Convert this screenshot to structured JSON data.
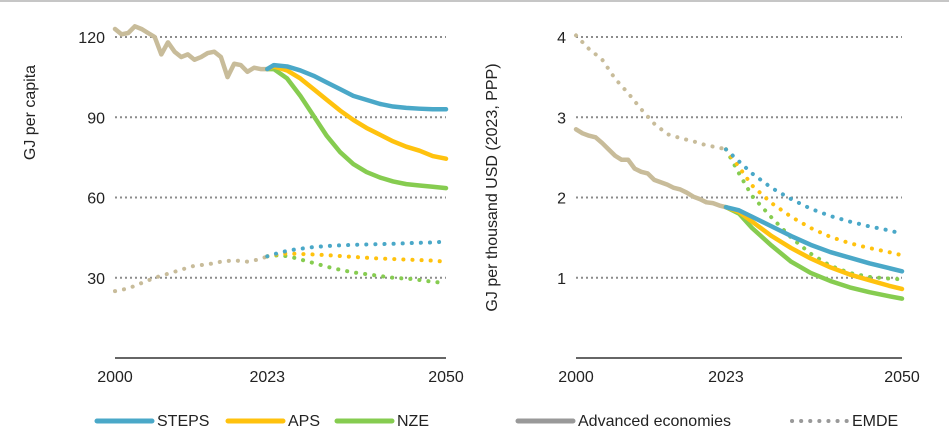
{
  "colors": {
    "STEPS": "#4aa8c8",
    "APS": "#ffc20e",
    "NZE": "#86cc50",
    "history": "#c8bc9a",
    "axis": "#333333",
    "grid": "#8c8c8c",
    "legend_gray": "#999999",
    "top_rule": "#b4b4b4"
  },
  "legend": {
    "steps": "STEPS",
    "aps": "APS",
    "nze": "NZE",
    "advanced": "Advanced economies",
    "emde": "EMDE"
  },
  "chart_data": [
    {
      "type": "line",
      "ylabel": "GJ per capita",
      "xlim": [
        2000,
        2050
      ],
      "ylim": [
        0,
        130
      ],
      "xticks": [
        2000,
        2023,
        2050
      ],
      "yticks": [
        30,
        60,
        90,
        120
      ],
      "grid": true,
      "series": [
        {
          "name": "Advanced economies",
          "scenario": "history",
          "style": "solid",
          "x": [
            2000,
            2001,
            2002,
            2003,
            2004,
            2005,
            2006,
            2007,
            2008,
            2009,
            2010,
            2011,
            2012,
            2013,
            2014,
            2015,
            2016,
            2017,
            2018,
            2019,
            2020,
            2021,
            2022,
            2023
          ],
          "y": [
            123,
            121,
            121.5,
            124,
            123,
            121.5,
            120,
            113.5,
            118,
            114.5,
            112.5,
            113.5,
            111.5,
            112.5,
            114,
            114.5,
            112.5,
            105,
            110,
            109.5,
            107,
            108.5,
            108,
            108
          ]
        },
        {
          "name": "Advanced economies",
          "scenario": "STEPS",
          "style": "solid",
          "x": [
            2023,
            2024,
            2026,
            2028,
            2030,
            2032,
            2034,
            2036,
            2038,
            2040,
            2042,
            2044,
            2046,
            2048,
            2050
          ],
          "y": [
            108,
            109.5,
            109,
            107.5,
            105.5,
            103,
            100.5,
            98,
            96.5,
            95,
            94,
            93.5,
            93.2,
            93,
            93
          ]
        },
        {
          "name": "Advanced economies",
          "scenario": "APS",
          "style": "solid",
          "x": [
            2023,
            2024,
            2026,
            2028,
            2030,
            2032,
            2034,
            2036,
            2038,
            2040,
            2042,
            2044,
            2046,
            2048,
            2050
          ],
          "y": [
            108,
            109,
            107.5,
            104.5,
            100.5,
            96.5,
            92.5,
            89,
            86,
            83.5,
            81,
            79,
            77.5,
            75.5,
            74.5
          ]
        },
        {
          "name": "Advanced economies",
          "scenario": "NZE",
          "style": "solid",
          "x": [
            2023,
            2024,
            2026,
            2028,
            2030,
            2032,
            2034,
            2036,
            2038,
            2040,
            2042,
            2044,
            2046,
            2048,
            2050
          ],
          "y": [
            108,
            108,
            104.5,
            98,
            90.5,
            83,
            77,
            72.5,
            69.5,
            67.5,
            66,
            65,
            64.5,
            64,
            63.5
          ]
        },
        {
          "name": "EMDE",
          "scenario": "history",
          "style": "dotted",
          "x": [
            2000,
            2002,
            2004,
            2006,
            2008,
            2010,
            2012,
            2014,
            2016,
            2018,
            2020,
            2022,
            2023
          ],
          "y": [
            25,
            26,
            28,
            30,
            31.5,
            33,
            34.5,
            35,
            36,
            36.5,
            36,
            37,
            38
          ]
        },
        {
          "name": "EMDE",
          "scenario": "STEPS",
          "style": "dotted",
          "x": [
            2023,
            2025,
            2027,
            2030,
            2033,
            2036,
            2039,
            2042,
            2045,
            2048,
            2050
          ],
          "y": [
            38,
            39.5,
            40.5,
            41.5,
            42,
            42.3,
            42.5,
            42.7,
            43,
            43.2,
            43.5
          ]
        },
        {
          "name": "EMDE",
          "scenario": "APS",
          "style": "dotted",
          "x": [
            2023,
            2025,
            2027,
            2030,
            2033,
            2036,
            2039,
            2042,
            2045,
            2048,
            2050
          ],
          "y": [
            38,
            39,
            39,
            38.7,
            38.3,
            37.8,
            37.3,
            37,
            36.7,
            36.4,
            36
          ]
        },
        {
          "name": "EMDE",
          "scenario": "NZE",
          "style": "dotted",
          "x": [
            2023,
            2025,
            2027,
            2030,
            2033,
            2036,
            2039,
            2042,
            2045,
            2048,
            2050
          ],
          "y": [
            38,
            38.5,
            37.5,
            35.5,
            33.5,
            32,
            31,
            30,
            29.5,
            28.5,
            28
          ]
        }
      ]
    },
    {
      "type": "line",
      "ylabel": "GJ per thousand USD (2023, PPP)",
      "xlim": [
        2000,
        2050
      ],
      "ylim": [
        0,
        4.3
      ],
      "xticks": [
        2000,
        2023,
        2050
      ],
      "yticks": [
        1,
        2,
        3,
        4
      ],
      "grid": true,
      "series": [
        {
          "name": "Advanced economies",
          "scenario": "history",
          "style": "solid",
          "x": [
            2000,
            2001,
            2002,
            2003,
            2004,
            2005,
            2006,
            2007,
            2008,
            2009,
            2010,
            2011,
            2012,
            2013,
            2014,
            2015,
            2016,
            2017,
            2018,
            2019,
            2020,
            2021,
            2022,
            2023
          ],
          "y": [
            2.85,
            2.8,
            2.77,
            2.75,
            2.68,
            2.6,
            2.52,
            2.47,
            2.47,
            2.36,
            2.32,
            2.3,
            2.22,
            2.19,
            2.16,
            2.12,
            2.1,
            2.06,
            2.01,
            1.98,
            1.94,
            1.93,
            1.9,
            1.88
          ]
        },
        {
          "name": "Advanced economies",
          "scenario": "STEPS",
          "style": "solid",
          "x": [
            2023,
            2025,
            2027,
            2030,
            2033,
            2036,
            2039,
            2042,
            2045,
            2048,
            2050
          ],
          "y": [
            1.88,
            1.84,
            1.76,
            1.64,
            1.52,
            1.41,
            1.32,
            1.25,
            1.18,
            1.12,
            1.08
          ]
        },
        {
          "name": "Advanced economies",
          "scenario": "APS",
          "style": "solid",
          "x": [
            2023,
            2025,
            2027,
            2030,
            2033,
            2036,
            2039,
            2042,
            2045,
            2048,
            2050
          ],
          "y": [
            1.88,
            1.82,
            1.7,
            1.52,
            1.37,
            1.24,
            1.13,
            1.04,
            0.97,
            0.9,
            0.86
          ]
        },
        {
          "name": "Advanced economies",
          "scenario": "NZE",
          "style": "solid",
          "x": [
            2023,
            2025,
            2027,
            2030,
            2033,
            2036,
            2039,
            2042,
            2045,
            2048,
            2050
          ],
          "y": [
            1.88,
            1.8,
            1.62,
            1.4,
            1.2,
            1.06,
            0.96,
            0.88,
            0.82,
            0.77,
            0.74
          ]
        },
        {
          "name": "EMDE",
          "scenario": "history",
          "style": "dotted",
          "x": [
            2000,
            2002,
            2004,
            2006,
            2008,
            2010,
            2012,
            2014,
            2016,
            2018,
            2020,
            2022,
            2023
          ],
          "y": [
            4.02,
            3.85,
            3.72,
            3.48,
            3.3,
            3.1,
            2.92,
            2.79,
            2.74,
            2.7,
            2.65,
            2.62,
            2.6
          ]
        },
        {
          "name": "EMDE",
          "scenario": "STEPS",
          "style": "dotted",
          "x": [
            2023,
            2025,
            2027,
            2030,
            2033,
            2036,
            2039,
            2042,
            2045,
            2048,
            2050
          ],
          "y": [
            2.6,
            2.45,
            2.3,
            2.12,
            1.98,
            1.86,
            1.77,
            1.7,
            1.64,
            1.59,
            1.55
          ]
        },
        {
          "name": "EMDE",
          "scenario": "APS",
          "style": "dotted",
          "x": [
            2023,
            2025,
            2027,
            2030,
            2033,
            2036,
            2039,
            2042,
            2045,
            2048,
            2050
          ],
          "y": [
            2.6,
            2.38,
            2.15,
            1.93,
            1.76,
            1.62,
            1.51,
            1.43,
            1.37,
            1.32,
            1.28
          ]
        },
        {
          "name": "EMDE",
          "scenario": "NZE",
          "style": "dotted",
          "x": [
            2023,
            2025,
            2027,
            2030,
            2033,
            2036,
            2039,
            2042,
            2045,
            2048,
            2050
          ],
          "y": [
            2.6,
            2.3,
            2.02,
            1.75,
            1.5,
            1.3,
            1.15,
            1.06,
            1.01,
            0.99,
            0.98
          ]
        }
      ]
    }
  ]
}
